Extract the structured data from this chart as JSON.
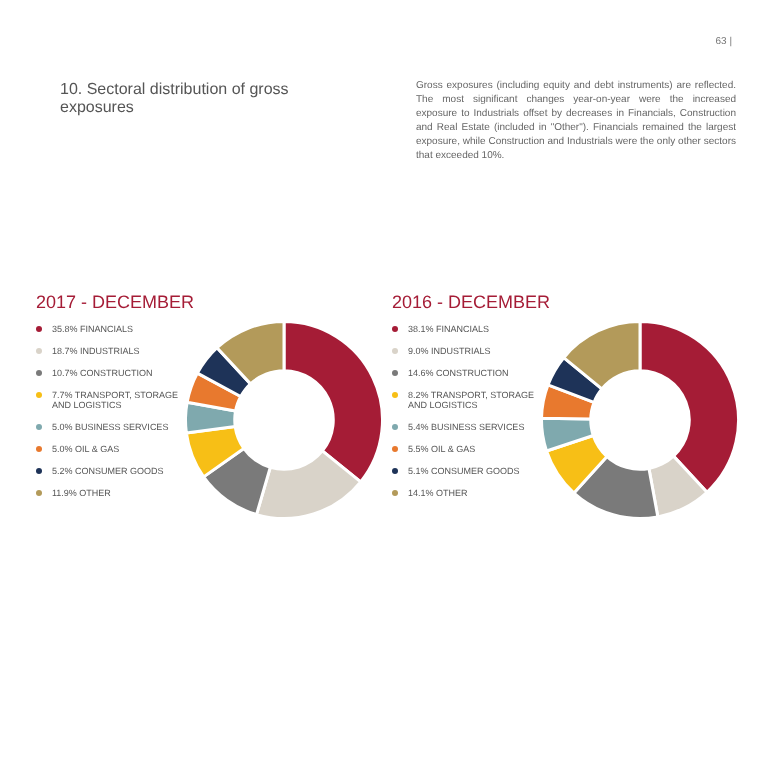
{
  "chart_data": [
    {
      "type": "donut",
      "title": "2017 - DECEMBER",
      "annotations": [
        "63 |",
        "10.   Sectoral distribution of gross exposures",
        "Gross exposures (including equity and debt instruments) are reflected. The most significant changes year-on-year were the increased exposure to Industrials offset by decreases in Financials, Construction and Real Estate (included in \"Other\"). Financials remained the largest exposure, while Construction and Industrials were the only other sectors that exceeded 10%."
      ],
      "legend": "left",
      "categories": [
        "35.8% FINANCIALS",
        "18.7% INDUSTRIALS",
        "10.7% CONSTRUCTION",
        "7.7% TRANSPORT, STORAGE AND LOGISTICS",
        "5.0% BUSINESS SERVICES",
        "5.0% OIL & GAS",
        "5.2% CONSUMER GOODS",
        "11.9% OTHER"
      ],
      "values": [
        35.8,
        18.7,
        10.7,
        7.7,
        5.0,
        5.0,
        5.2,
        11.9
      ],
      "colors": [
        "#a51c36",
        "#d9d3c9",
        "#7a7a7a",
        "#f7bf16",
        "#7fa9ae",
        "#e8792e",
        "#1e3358",
        "#b39a5a"
      ]
    },
    {
      "type": "donut",
      "title": "2016 - DECEMBER",
      "legend": "left",
      "categories": [
        "38.1% FINANCIALS",
        "9.0% INDUSTRIALS",
        "14.6% CONSTRUCTION",
        "8.2% TRANSPORT, STORAGE AND LOGISTICS",
        "5.4% BUSINESS SERVICES",
        "5.5% OIL & GAS",
        "5.1% CONSUMER GOODS",
        "14.1% OTHER"
      ],
      "values": [
        38.1,
        9.0,
        14.6,
        8.2,
        5.4,
        5.5,
        5.1,
        14.1
      ],
      "colors": [
        "#a51c36",
        "#d9d3c9",
        "#7a7a7a",
        "#f7bf16",
        "#7fa9ae",
        "#e8792e",
        "#1e3358",
        "#b39a5a"
      ]
    }
  ]
}
